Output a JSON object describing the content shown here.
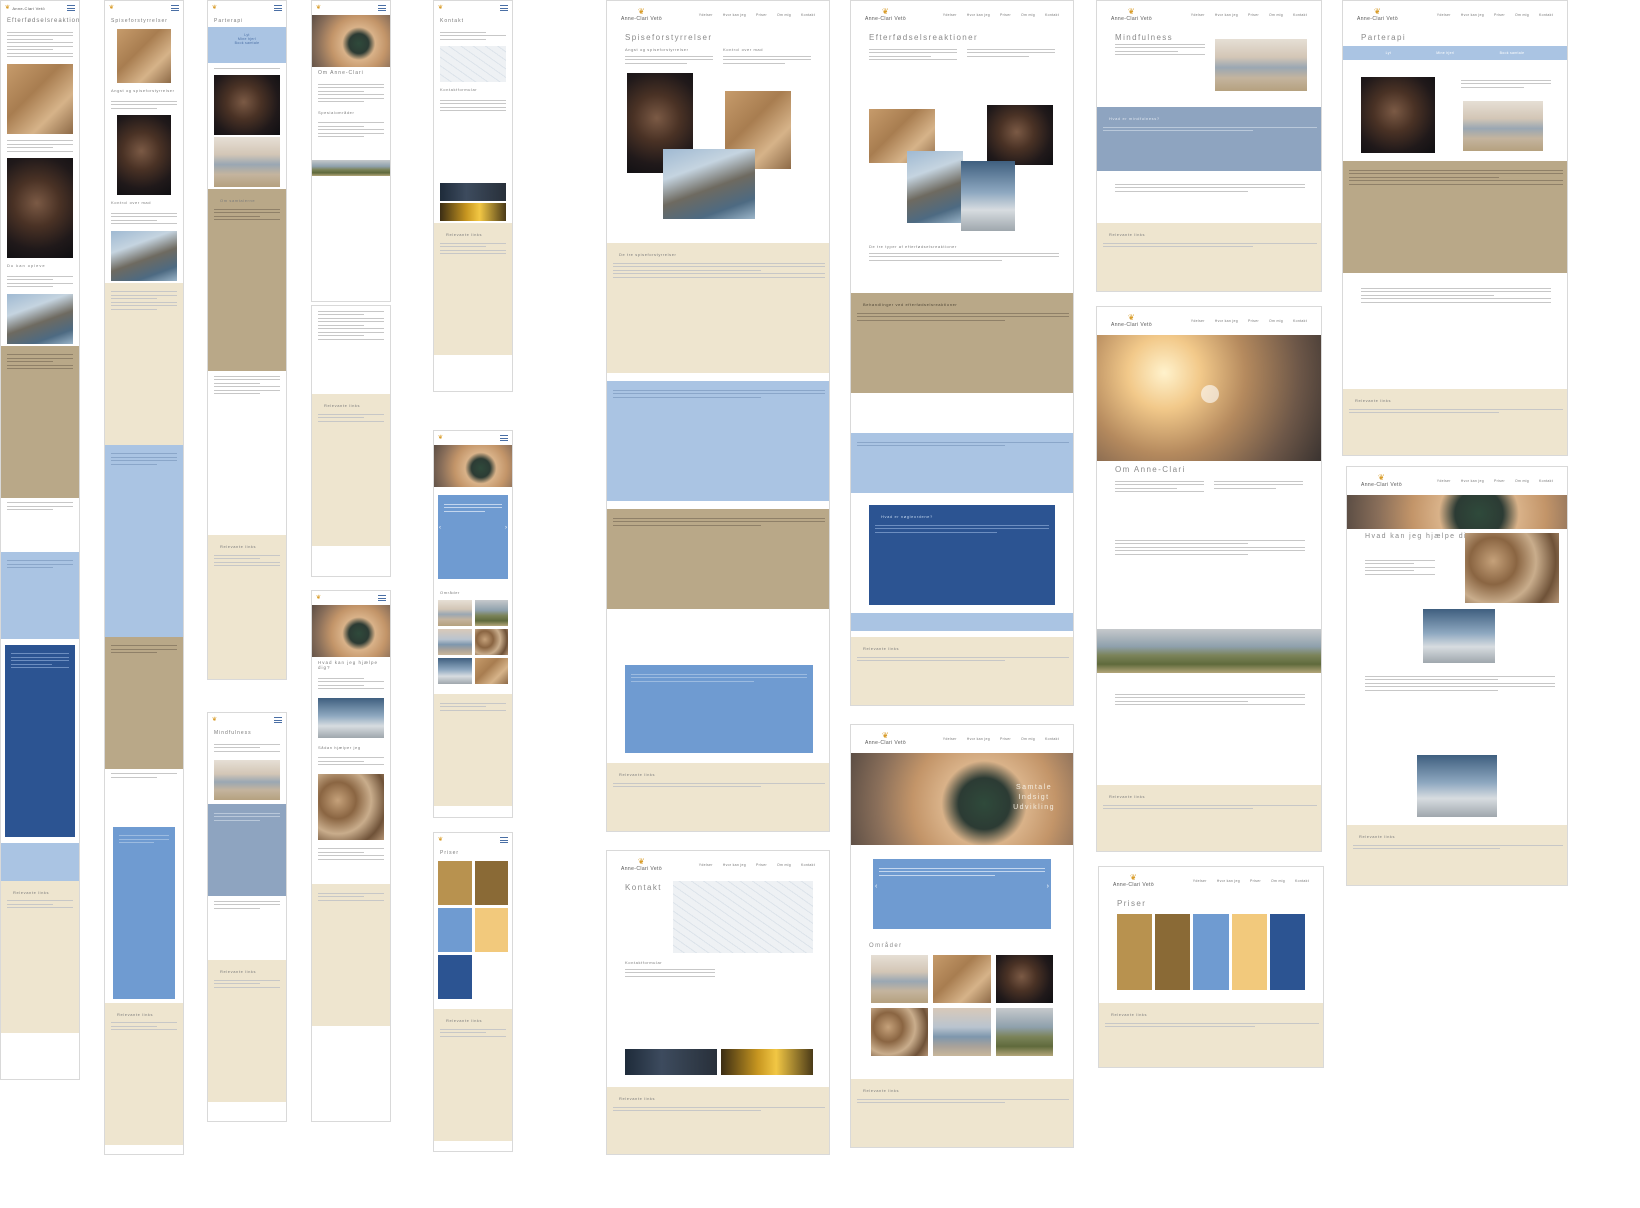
{
  "brand": {
    "name": "Anne-Clari Vetö",
    "accent": "#d99d2b",
    "blue": "#4a6fa5",
    "sand": "#eee5cf",
    "khaki": "#b9a888",
    "light_blue": "#aac4e3",
    "dark_blue": "#2c5492"
  },
  "nav": [
    "Ydelser",
    "Hvor kan jeg",
    "Priser",
    "Om mig",
    "Kontakt"
  ],
  "mobile": {
    "m1_title": "Efterfødselsreaktioner",
    "m1_list_title": "Du kan opleve",
    "m2_title": "Spiseforstyrrelser",
    "m2_sub1": "Angst og spiseforstyrrelser",
    "m2_sub2": "Kontrol over mad",
    "m3_title": "Parterapi",
    "m3_btn1": "Lyt",
    "m3_btn2": "Mine hjerl",
    "m3_btn3": "Book samtale",
    "m3_sub": "Om samtalerne",
    "m3_links": "Relevante links",
    "m4_title": "Om Anne-Clari",
    "m4_sub": "Spesialområder",
    "m4_links": "Relevante links",
    "m5_title": "Kontakt",
    "m5_form": "Kontaktformular",
    "m5_links": "Relevante links",
    "m6_links": "Relevante links",
    "m6_area": "Områder",
    "m7_title": "Hvad kan jeg hjælpe dig?",
    "m7_sub": "Sådan hjælper jeg",
    "m8_title": "Mindfulness",
    "m8_links": "Relevante links",
    "m9_title": "Priser",
    "m9_links": "Relevante links",
    "m2_links": "Relevante links"
  },
  "desktop": {
    "spise_title": "Spiseforstyrrelser",
    "spise_sub1": "Angst og spiseforstyrrelser",
    "spise_sub2": "Kontrol over mad",
    "spise_band": "De tre spiseforstyrrelser",
    "spise_links": "Relevante links",
    "efter_title": "Efterfødselsreaktioner",
    "efter_sub": "De tre typer af efterfødselsreaktioner",
    "efter_band": "Behandlinger ved efterfødselsreaktioner",
    "efter_blue": "Hvad er nøgleordene?",
    "efter_links": "Relevante links",
    "mind_title": "Mindfulness",
    "mind_band": "Hvad er mindfulness?",
    "mind_links": "Relevante links",
    "par_title": "Parterapi",
    "par_btn1": "Lyt",
    "par_btn2": "Mine hjerl",
    "par_btn3": "Book samtale",
    "par_links": "Relevante links",
    "om_title": "Om Anne-Clari",
    "om_links": "Relevante links",
    "hvad_title": "Hvad kan jeg hjælpe dig?",
    "hvad_links": "Relevante links",
    "kontakt_title": "Kontakt",
    "kontakt_form": "Kontaktformular",
    "kontakt_links": "Relevante links",
    "home_hero1": "Samtale",
    "home_hero2": "Indsigt",
    "home_hero3": "Udvikling",
    "home_area": "Områder",
    "home_links": "Relevante links",
    "priser_title": "Priser",
    "priser_links": "Relevante links"
  }
}
